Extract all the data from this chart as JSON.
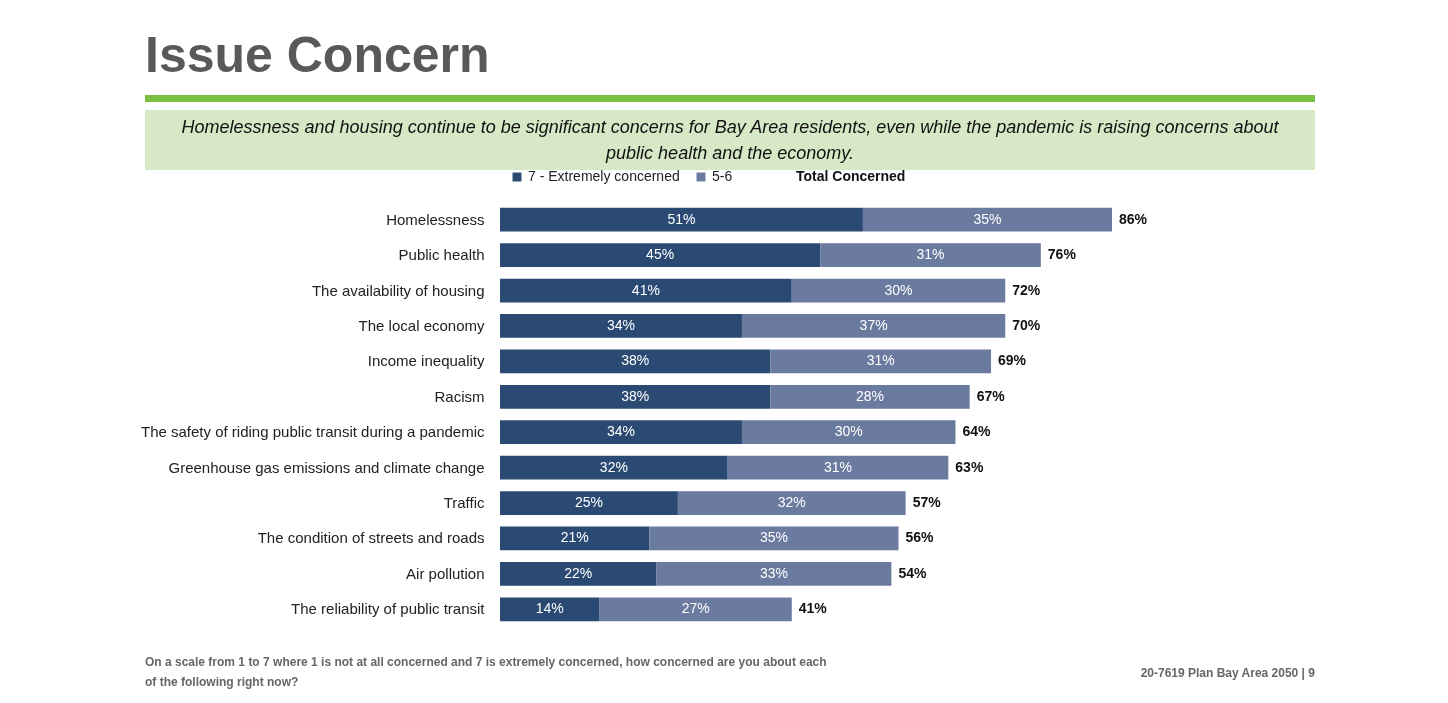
{
  "chart_data": {
    "type": "bar",
    "orientation": "horizontal",
    "stacked": true,
    "title": "Issue Concern",
    "subtitle": "Homelessness and housing continue to be significant concerns for Bay Area residents, even while the pandemic is raising concerns about public health and the economy.",
    "categories": [
      "Homelessness",
      "Public health",
      "The availability of housing",
      "The local economy",
      "Income inequality",
      "Racism",
      "The safety of riding public transit during a pandemic",
      "Greenhouse gas emissions and climate change",
      "Traffic",
      "The condition of streets and roads",
      "Air pollution",
      "The reliability of public transit"
    ],
    "series": [
      {
        "name": "7 - Extremely concerned",
        "color": "#2b4a73",
        "values": [
          51,
          45,
          41,
          34,
          38,
          38,
          34,
          32,
          25,
          21,
          22,
          14
        ],
        "value_labels": [
          "51%",
          "45%",
          "41%",
          "34%",
          "38%",
          "38%",
          "34%",
          "32%",
          "25%",
          "21%",
          "22%",
          "14%"
        ]
      },
      {
        "name": "5-6",
        "color": "#6b7a9f",
        "values": [
          35,
          31,
          30,
          37,
          31,
          28,
          30,
          31,
          32,
          35,
          33,
          27
        ],
        "value_labels": [
          "35%",
          "31%",
          "30%",
          "37%",
          "31%",
          "28%",
          "30%",
          "31%",
          "32%",
          "35%",
          "33%",
          "27%"
        ]
      }
    ],
    "totals": [
      "86%",
      "76%",
      "72%",
      "70%",
      "69%",
      "67%",
      "64%",
      "63%",
      "57%",
      "56%",
      "54%",
      "41%"
    ],
    "legend": "top",
    "annotations": [
      "Total Concerned",
      "On a scale from 1 to 7 where 1 is not at all concerned and 7 is extremely concerned, how concerned are you about each of the following right now?",
      "20-7619 Plan Bay Area 2050 | 9"
    ]
  }
}
